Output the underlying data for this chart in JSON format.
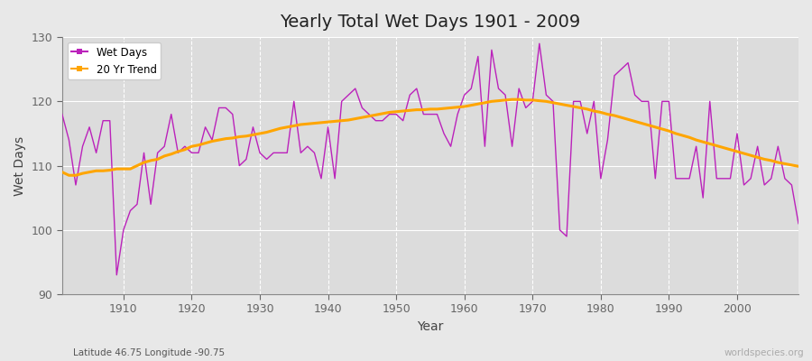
{
  "title": "Yearly Total Wet Days 1901 - 2009",
  "ylabel": "Wet Days",
  "xlabel": "Year",
  "footnote_left": "Latitude 46.75 Longitude -90.75",
  "footnote_right": "worldspecies.org",
  "legend_wet_days": "Wet Days",
  "legend_trend": "20 Yr Trend",
  "ylim": [
    90,
    130
  ],
  "xlim": [
    1901,
    2009
  ],
  "yticks": [
    90,
    100,
    110,
    120,
    130
  ],
  "xticks": [
    1910,
    1920,
    1930,
    1940,
    1950,
    1960,
    1970,
    1980,
    1990,
    2000
  ],
  "wet_days_color": "#bb22bb",
  "trend_color": "#ffa500",
  "background_color": "#e8e8e8",
  "plot_bg_color": "#dcdcdc",
  "wet_days": [
    118,
    114,
    107,
    113,
    116,
    112,
    117,
    117,
    93,
    100,
    103,
    104,
    112,
    104,
    112,
    113,
    118,
    112,
    113,
    112,
    112,
    116,
    114,
    119,
    119,
    118,
    110,
    111,
    116,
    112,
    111,
    112,
    112,
    112,
    120,
    112,
    113,
    112,
    108,
    116,
    108,
    120,
    121,
    122,
    119,
    118,
    117,
    117,
    118,
    118,
    117,
    121,
    122,
    118,
    118,
    118,
    115,
    113,
    118,
    121,
    122,
    127,
    113,
    128,
    122,
    121,
    113,
    122,
    119,
    120,
    129,
    121,
    120,
    100,
    99,
    120,
    120,
    115,
    120,
    108,
    114,
    124,
    125,
    126,
    121,
    120,
    120,
    108,
    120,
    120,
    108,
    108,
    108,
    113,
    105,
    120,
    108,
    108,
    108,
    115,
    107,
    108,
    113,
    107,
    108,
    113,
    108,
    107,
    101
  ],
  "trend": [
    109.0,
    108.5,
    108.5,
    108.8,
    109.0,
    109.2,
    109.2,
    109.3,
    109.5,
    109.5,
    109.5,
    110.0,
    110.5,
    110.8,
    111.0,
    111.5,
    111.8,
    112.2,
    112.5,
    113.0,
    113.2,
    113.5,
    113.8,
    114.0,
    114.2,
    114.3,
    114.5,
    114.6,
    114.8,
    115.0,
    115.2,
    115.5,
    115.8,
    116.0,
    116.2,
    116.4,
    116.5,
    116.6,
    116.7,
    116.8,
    116.9,
    117.0,
    117.1,
    117.3,
    117.5,
    117.7,
    117.9,
    118.1,
    118.3,
    118.4,
    118.5,
    118.6,
    118.7,
    118.7,
    118.8,
    118.8,
    118.9,
    119.0,
    119.1,
    119.2,
    119.4,
    119.6,
    119.8,
    120.0,
    120.1,
    120.2,
    120.3,
    120.3,
    120.2,
    120.2,
    120.1,
    120.0,
    119.8,
    119.6,
    119.4,
    119.2,
    119.0,
    118.8,
    118.5,
    118.3,
    118.0,
    117.8,
    117.5,
    117.2,
    116.9,
    116.6,
    116.3,
    116.0,
    115.7,
    115.4,
    115.0,
    114.7,
    114.4,
    114.0,
    113.7,
    113.4,
    113.1,
    112.8,
    112.5,
    112.2,
    111.9,
    111.6,
    111.3,
    111.0,
    110.8,
    110.5,
    110.3,
    110.1,
    109.9
  ]
}
